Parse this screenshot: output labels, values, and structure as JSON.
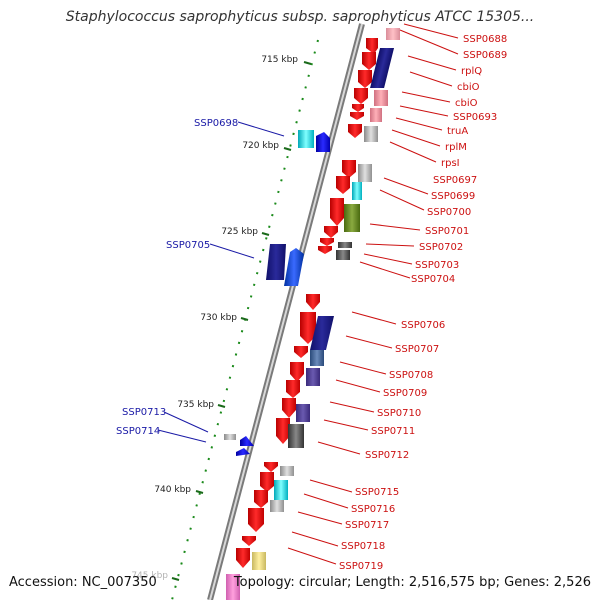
{
  "title": "Staphylococcus saprophyticus subsp. saprophyticus ATCC 15305...",
  "accession": "Accession: NC_007350",
  "topology": "Topology: circular; Length: 2,516,575 bp; Genes: 2,526",
  "colors": {
    "forward": "#ee1111",
    "reverse_label": "#1a1aa6",
    "forward_label": "#cc1111",
    "backbone": "#8a8a8a",
    "ticks": "#2a8a2a"
  },
  "scale_ticks": [
    "715 kbp",
    "720 kbp",
    "725 kbp",
    "730 kbp",
    "735 kbp",
    "740 kbp",
    "745 kbp"
  ],
  "reverse_labels": [
    "SSP0698",
    "SSP0705",
    "SSP0713",
    "SSP0714"
  ],
  "forward_labels": [
    "SSP0688",
    "SSP0689",
    "rplQ",
    "cbiO",
    "cbiO",
    "SSP0693",
    "truA",
    "rplM",
    "rpsI",
    "SSP0697",
    "SSP0699",
    "SSP0700",
    "SSP0701",
    "SSP0702",
    "SSP0703",
    "SSP0704",
    "SSP0706",
    "SSP0707",
    "SSP0708",
    "SSP0709",
    "SSP0710",
    "SSP0711",
    "SSP0712",
    "SSP0715",
    "SSP0716",
    "SSP0717",
    "SSP0718",
    "SSP0719"
  ]
}
